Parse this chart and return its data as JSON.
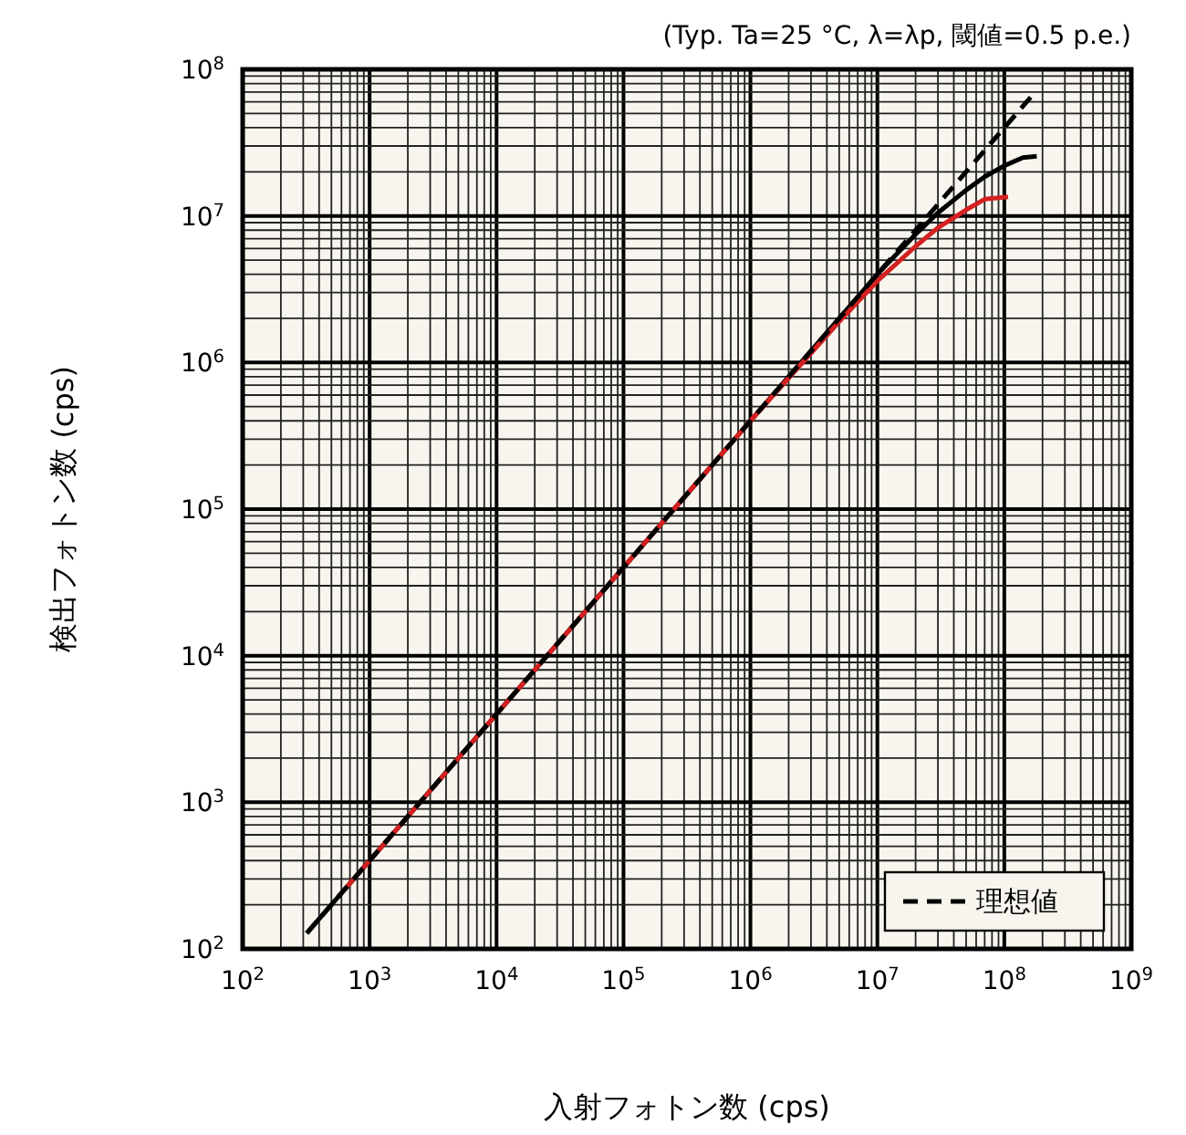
{
  "chart_data": {
    "type": "line",
    "annotations": [
      "(Typ. Ta=25 °C, λ=λp, 閾値=0.5 p.e.)"
    ],
    "xlabel": "入射フォトン数 (cps)",
    "ylabel": "検出フォトン数 (cps)",
    "log": "xy",
    "grid": true,
    "legend": "bottom right",
    "xlim": [
      100,
      1000000000
    ],
    "ylim": [
      100,
      100000000
    ],
    "xticks": [
      {
        "value": 100,
        "label": "10$^{2}$"
      },
      {
        "value": 1000,
        "label": "10$^{3}$"
      },
      {
        "value": 10000,
        "label": "10$^{4}$"
      },
      {
        "value": 100000,
        "label": "10$^{5}$"
      },
      {
        "value": 1000000,
        "label": "10$^{6}$"
      },
      {
        "value": 10000000,
        "label": "10$^{7}$"
      },
      {
        "value": 100000000,
        "label": "10$^{8}$"
      },
      {
        "value": 1000000000,
        "label": "10$^{9}$"
      }
    ],
    "yticks": [
      {
        "value": 100,
        "label": "10$^{2}$"
      },
      {
        "value": 1000,
        "label": "10$^{3}$"
      },
      {
        "value": 10000,
        "label": "10$^{4}$"
      },
      {
        "value": 100000,
        "label": "10$^{5}$"
      },
      {
        "value": 1000000,
        "label": "10$^{6}$"
      },
      {
        "value": 10000000,
        "label": "10$^{7}$"
      },
      {
        "value": 100000000,
        "label": "10$^{8}$"
      }
    ],
    "series": [
      {
        "name": "理想値",
        "color": "#000000",
        "line_style": "dashed",
        "x": [
          320,
          175000000
        ],
        "values": [
          128,
          70000000
        ]
      },
      {
        "color": "#000000",
        "line_style": "solid",
        "x": [
          320,
          10000000,
          20000000,
          30000000,
          50000000,
          70000000,
          100000000,
          140000000,
          180000000
        ],
        "values": [
          128,
          4000000,
          7500000,
          10500000,
          15000000,
          18500000,
          22000000,
          25000000,
          25500000
        ]
      },
      {
        "color": "#d42020",
        "line_style": "solid",
        "x": [
          600,
          1000000,
          5000000,
          10000000,
          20000000,
          30000000,
          50000000,
          70000000,
          107000000
        ],
        "values": [
          240,
          400000,
          1900000,
          3600000,
          6200000,
          8300000,
          11000000,
          13000000,
          13500000
        ]
      }
    ]
  }
}
